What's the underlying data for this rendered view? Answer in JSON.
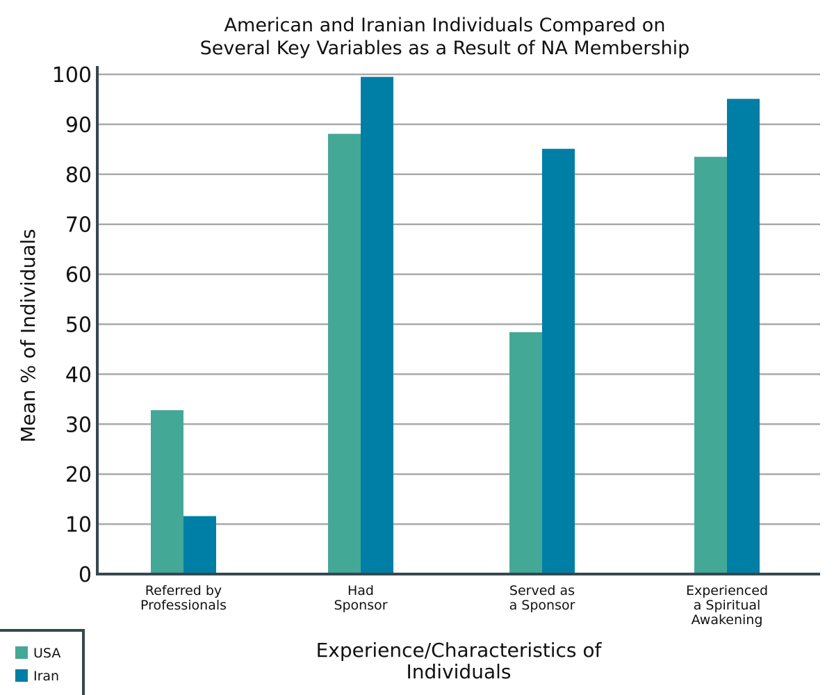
{
  "chart_data": {
    "type": "bar",
    "title": [
      "American and Iranian Individuals Compared on",
      "Several Key Variables as a Result of NA Membership"
    ],
    "xlabel": [
      "Experience/Characteristics of",
      "Individuals"
    ],
    "ylabel": "Mean % of Individuals",
    "ylim": [
      0,
      100
    ],
    "yticks": [
      "0",
      "10",
      "20",
      "30",
      "40",
      "50",
      "60",
      "70",
      "80",
      "90",
      "100"
    ],
    "categories": [
      [
        "Referred by",
        "Professionals"
      ],
      [
        "Had",
        "Sponsor"
      ],
      [
        "Served as",
        "a Sponsor"
      ],
      [
        "Experienced",
        "a Spiritual",
        "Awakening"
      ]
    ],
    "series": [
      {
        "name": "USA",
        "color": "#44a896",
        "values": [
          32.8,
          88.1,
          48.4,
          83.5
        ]
      },
      {
        "name": "Iran",
        "color": "#007fa6",
        "values": [
          11.6,
          99.5,
          85.1,
          95.1
        ]
      }
    ],
    "grid": true,
    "legend_position": "bottom-left"
  }
}
